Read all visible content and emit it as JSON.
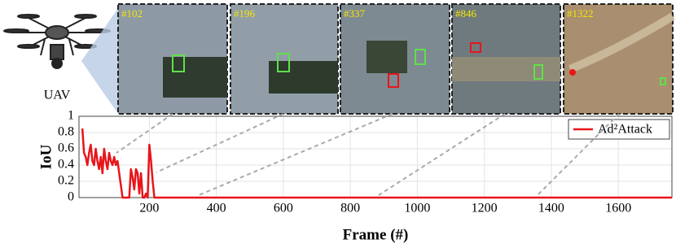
{
  "uav_label": "UAV",
  "frames": [
    {
      "label": "#102"
    },
    {
      "label": "#196"
    },
    {
      "label": "#337"
    },
    {
      "label": "#846"
    },
    {
      "label": "#1322"
    }
  ],
  "chart_data": {
    "type": "line",
    "xlabel": "Frame (#)",
    "ylabel": "IoU",
    "x": [
      0,
      5,
      10,
      15,
      20,
      25,
      30,
      35,
      40,
      45,
      50,
      55,
      60,
      65,
      70,
      75,
      80,
      85,
      90,
      95,
      100,
      105,
      110,
      120,
      130,
      140,
      145,
      150,
      155,
      160,
      165,
      170,
      175,
      180,
      185,
      190,
      195,
      200,
      205,
      210,
      215,
      1760
    ],
    "series": [
      {
        "name": "Ad²Attack",
        "color": "#e8151b",
        "values": [
          0.85,
          0.55,
          0.5,
          0.4,
          0.55,
          0.65,
          0.45,
          0.4,
          0.6,
          0.45,
          0.35,
          0.5,
          0.3,
          0.6,
          0.45,
          0.35,
          0.55,
          0.45,
          0.4,
          0.5,
          0.4,
          0.45,
          0.3,
          0,
          0,
          0,
          0.35,
          0.25,
          0.1,
          0.35,
          0.3,
          0.05,
          0.3,
          0,
          0,
          0.05,
          0,
          0.65,
          0.45,
          0.2,
          0,
          0
        ]
      }
    ],
    "xlim": [
      -10,
      1760
    ],
    "ylim": [
      0,
      1
    ],
    "xticks": [
      200,
      400,
      600,
      800,
      1000,
      1200,
      1400,
      1600
    ],
    "yticks": [
      0,
      0.2,
      0.4,
      0.6,
      0.8,
      1
    ],
    "grid": true,
    "legend_position": "upper right"
  }
}
